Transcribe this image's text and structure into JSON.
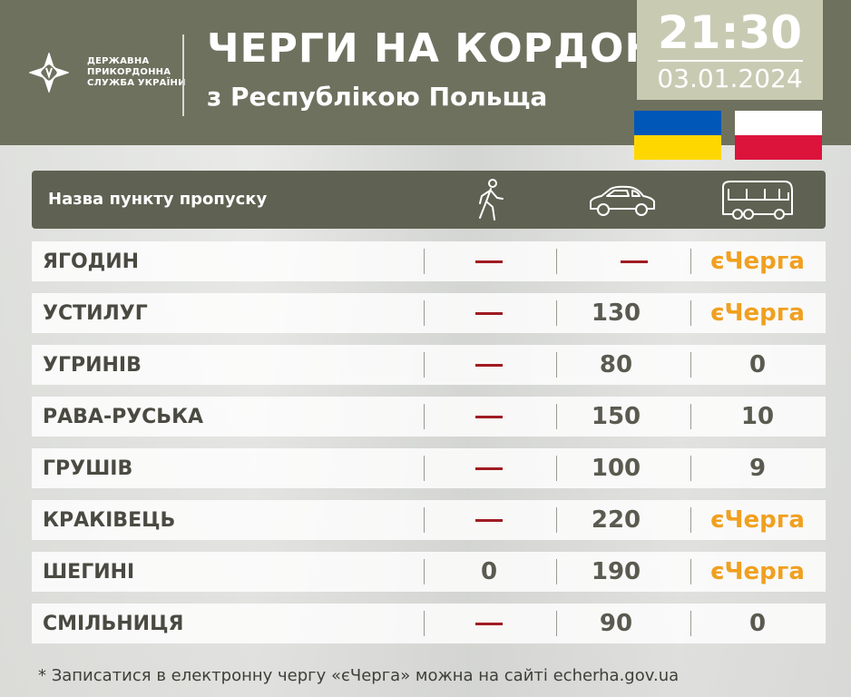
{
  "org": {
    "lines": [
      "ДЕРЖАВНА",
      "ПРИКОРДОННА",
      "СЛУЖБА УКРАЇНИ"
    ]
  },
  "title": "ЧЕРГИ НА КОРДОНІ",
  "subtitle": "з Республікою Польща",
  "time": "21:30",
  "date": "03.01.2024",
  "colors": {
    "header": "#6f715f",
    "accent_dash": "#a01c22",
    "echerga": "#f0a020"
  },
  "table": {
    "header_label": "Назва пункту пропуску",
    "column_icons": [
      "pedestrian-icon",
      "car-icon",
      "bus-icon"
    ],
    "rows": [
      {
        "name": "ЯГОДИН",
        "pedestrian": "—",
        "car": "—",
        "bus": "єЧерга"
      },
      {
        "name": "УСТИЛУГ",
        "pedestrian": "—",
        "car": "130",
        "bus": "єЧерга"
      },
      {
        "name": "УГРИНІВ",
        "pedestrian": "—",
        "car": "80",
        "bus": "0"
      },
      {
        "name": "РАВА-РУСЬКА",
        "pedestrian": "—",
        "car": "150",
        "bus": "10"
      },
      {
        "name": "ГРУШІВ",
        "pedestrian": "—",
        "car": "100",
        "bus": "9"
      },
      {
        "name": "КРАКІВЕЦЬ",
        "pedestrian": "—",
        "car": "220",
        "bus": "єЧерга"
      },
      {
        "name": "ШЕГИНІ",
        "pedestrian": "0",
        "car": "190",
        "bus": "єЧерга"
      },
      {
        "name": "СМІЛЬНИЦЯ",
        "pedestrian": "—",
        "car": "90",
        "bus": "0"
      }
    ]
  },
  "footnote": "* Записатися в електронну чергу «єЧерга» можна на сайті echerha.gov.ua"
}
